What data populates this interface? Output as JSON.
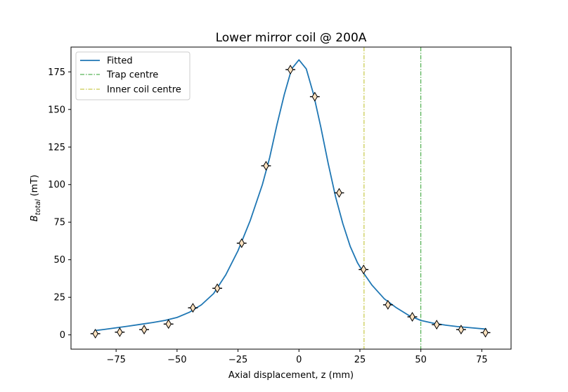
{
  "chart_data": {
    "type": "scatter",
    "title": "Lower mirror coil @ 200A",
    "xlabel": "Axial displacement, z (mm)",
    "ylabel_main": "B",
    "ylabel_sub": "total",
    "ylabel_unit": " (mT)",
    "xlim": [
      -93.5,
      87.0
    ],
    "ylim": [
      -9.5,
      191.5
    ],
    "xticks": [
      -75,
      -50,
      -25,
      0,
      25,
      50,
      75
    ],
    "xtick_labels": [
      "−75",
      "−50",
      "−25",
      "0",
      "25",
      "50",
      "75"
    ],
    "yticks": [
      0,
      25,
      50,
      75,
      100,
      125,
      150,
      175
    ],
    "ytick_labels": [
      "0",
      "25",
      "50",
      "75",
      "100",
      "125",
      "150",
      "175"
    ],
    "grid": false,
    "legend_position": "top-left",
    "legend": [
      {
        "label": "Fitted",
        "style": "solid",
        "color": "#1f77b4"
      },
      {
        "label": "Trap centre",
        "style": "dashdot",
        "color": "#2ca02c"
      },
      {
        "label": "Inner coil centre",
        "style": "dashdot",
        "color": "#bcbd22"
      }
    ],
    "measured": {
      "marker": "thin_diamond",
      "fill": "#fde2c0",
      "edge": "#000000",
      "x_error": 2.0,
      "x": [
        -83.5,
        -73.5,
        -63.5,
        -53.5,
        -43.5,
        -33.5,
        -23.5,
        -13.5,
        -3.5,
        6.5,
        16.5,
        26.5,
        36.5,
        46.5,
        56.5,
        66.5,
        76.5
      ],
      "y": [
        0.8,
        1.8,
        3.5,
        7.2,
        18.0,
        31.0,
        61.0,
        112.5,
        176.5,
        158.5,
        94.5,
        43.5,
        20.0,
        12.0,
        6.8,
        3.5,
        1.5
      ]
    },
    "fitted": {
      "color": "#1f77b4",
      "x": [
        -84,
        -80,
        -75,
        -70,
        -65,
        -60,
        -55,
        -50,
        -45,
        -40,
        -35,
        -30,
        -25,
        -20,
        -15,
        -12,
        -9,
        -6,
        -3,
        0,
        3,
        6,
        9,
        12,
        15,
        18,
        21,
        24,
        27,
        30,
        35,
        40,
        45,
        50,
        55,
        60,
        65,
        70,
        77
      ],
      "y": [
        2.8,
        3.6,
        4.7,
        5.8,
        7.0,
        8.2,
        9.6,
        11.6,
        15.0,
        20.0,
        27.5,
        40.0,
        56.0,
        76.0,
        100.0,
        118.0,
        140.0,
        160.0,
        177.0,
        183.0,
        177.0,
        160.0,
        138.0,
        114.0,
        92.0,
        74.0,
        59.0,
        48.0,
        40.0,
        33.0,
        24.0,
        18.0,
        13.0,
        9.6,
        7.8,
        6.5,
        5.5,
        4.8,
        3.8
      ]
    },
    "vlines": [
      {
        "name": "Trap centre",
        "x": 50.0,
        "color": "#2ca02c"
      },
      {
        "name": "Inner coil centre",
        "x": 26.7,
        "color": "#bcbd22"
      }
    ]
  }
}
